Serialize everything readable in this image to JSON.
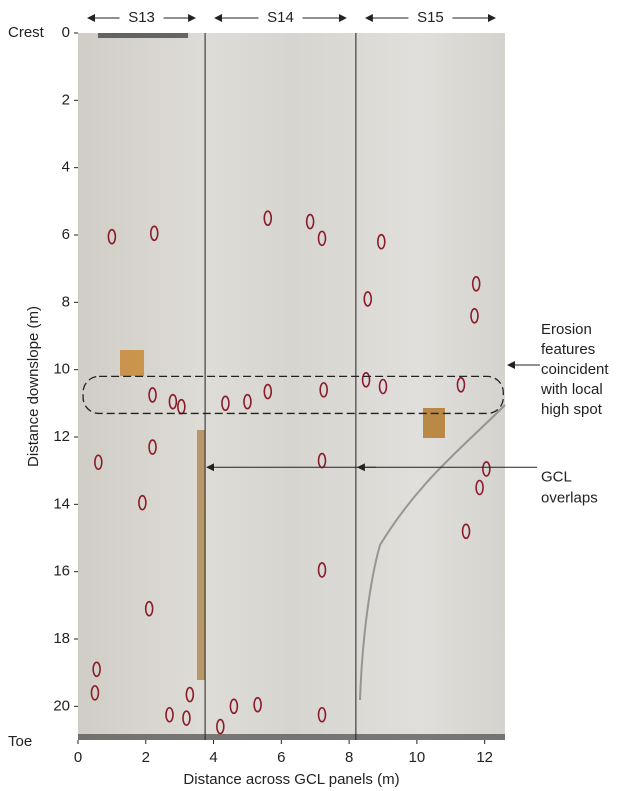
{
  "chart_data": {
    "type": "image_plot",
    "x_label": "Distance across GCL panels (m)",
    "y_label": "Distance downslope (m)",
    "xlim": [
      0,
      12.6
    ],
    "ylim": [
      0,
      21
    ],
    "xticks": [
      0,
      2,
      4,
      6,
      8,
      10,
      12
    ],
    "yticks": [
      0,
      2,
      4,
      6,
      8,
      10,
      12,
      14,
      16,
      18,
      20
    ],
    "top_label": "Crest",
    "bottom_label": "Toe",
    "panels": [
      {
        "name": "S13",
        "span": [
          0,
          3.75
        ]
      },
      {
        "name": "S14",
        "span": [
          3.75,
          8.2
        ]
      },
      {
        "name": "S15",
        "span": [
          8.2,
          12.6
        ]
      }
    ],
    "outline_color": "#8b1a2a",
    "features": [
      {
        "x": 1.0,
        "y": 6.05
      },
      {
        "x": 2.25,
        "y": 5.95
      },
      {
        "x": 5.6,
        "y": 5.5
      },
      {
        "x": 6.85,
        "y": 5.6
      },
      {
        "x": 7.2,
        "y": 6.1
      },
      {
        "x": 8.95,
        "y": 6.2
      },
      {
        "x": 8.55,
        "y": 7.9
      },
      {
        "x": 11.75,
        "y": 7.45
      },
      {
        "x": 11.7,
        "y": 8.4
      },
      {
        "x": 2.2,
        "y": 10.75
      },
      {
        "x": 2.8,
        "y": 10.95
      },
      {
        "x": 3.05,
        "y": 11.1
      },
      {
        "x": 4.35,
        "y": 11.0
      },
      {
        "x": 5.0,
        "y": 10.95
      },
      {
        "x": 5.6,
        "y": 10.65
      },
      {
        "x": 7.25,
        "y": 10.6
      },
      {
        "x": 8.5,
        "y": 10.3
      },
      {
        "x": 9.0,
        "y": 10.5
      },
      {
        "x": 11.3,
        "y": 10.45
      },
      {
        "x": 0.6,
        "y": 12.75
      },
      {
        "x": 2.2,
        "y": 12.3
      },
      {
        "x": 7.2,
        "y": 12.7
      },
      {
        "x": 12.05,
        "y": 12.95
      },
      {
        "x": 11.85,
        "y": 13.5
      },
      {
        "x": 1.9,
        "y": 13.95
      },
      {
        "x": 11.45,
        "y": 14.8
      },
      {
        "x": 7.2,
        "y": 15.95
      },
      {
        "x": 2.1,
        "y": 17.1
      },
      {
        "x": 0.55,
        "y": 18.9
      },
      {
        "x": 0.5,
        "y": 19.6
      },
      {
        "x": 3.3,
        "y": 19.65
      },
      {
        "x": 2.7,
        "y": 20.25
      },
      {
        "x": 3.2,
        "y": 20.35
      },
      {
        "x": 4.6,
        "y": 20.0
      },
      {
        "x": 5.3,
        "y": 19.95
      },
      {
        "x": 7.2,
        "y": 20.25
      },
      {
        "x": 4.2,
        "y": 20.6
      }
    ],
    "highlight": {
      "xlim": [
        0.15,
        12.55
      ],
      "ylim": [
        10.2,
        11.3
      ]
    },
    "annotation_erosion": [
      "Erosion",
      "features",
      "coincident",
      "with local",
      "high spot"
    ],
    "annotation_overlaps": {
      "lines": [
        "GCL",
        "overlaps"
      ],
      "y": 12.9
    }
  }
}
